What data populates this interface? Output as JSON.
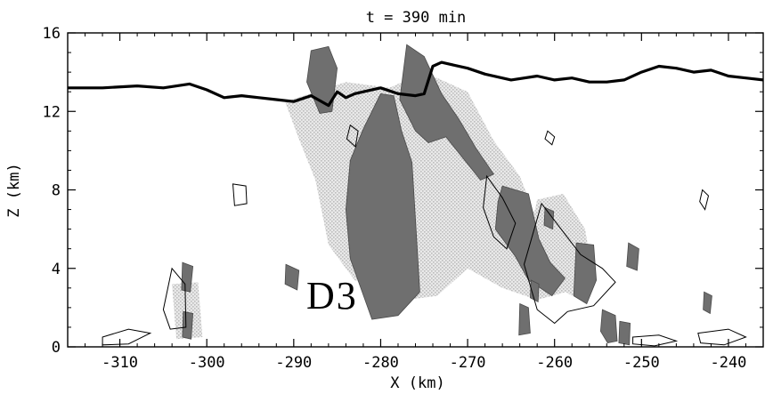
{
  "chart_data": {
    "type": "contour",
    "title": "t = 390 min",
    "xlabel": "X (km)",
    "ylabel": "Z (km)",
    "xlim": [
      -316,
      -236
    ],
    "ylim": [
      0,
      16
    ],
    "x_ticks": [
      -310,
      -300,
      -290,
      -280,
      -270,
      -260,
      -250,
      -240
    ],
    "y_ticks": [
      0,
      4,
      8,
      12,
      16
    ],
    "annotations": [
      {
        "text": "D3",
        "x": -281,
        "y": 2.5
      }
    ],
    "thick_contour": {
      "x": [
        -316,
        -312,
        -308,
        -305,
        -302,
        -300,
        -298,
        -296,
        -294,
        -292,
        -290,
        -288,
        -286,
        -285,
        -284,
        -283,
        -282,
        -280,
        -278,
        -276,
        -275,
        -274,
        -273,
        -272,
        -270,
        -268,
        -265,
        -262,
        -260,
        -258,
        -256,
        -254,
        -252,
        -250,
        -248,
        -246,
        -244,
        -242,
        -240,
        -238,
        -236
      ],
      "z": [
        13.2,
        13.2,
        13.3,
        13.2,
        13.4,
        13.1,
        12.7,
        12.8,
        12.7,
        12.6,
        12.5,
        12.8,
        12.3,
        13.0,
        12.7,
        12.9,
        13.0,
        13.2,
        12.9,
        12.8,
        12.9,
        14.3,
        14.5,
        14.4,
        14.2,
        13.9,
        13.6,
        13.8,
        13.6,
        13.7,
        13.5,
        13.5,
        13.6,
        14.0,
        14.3,
        14.2,
        14.0,
        14.1,
        13.8,
        13.7,
        13.6
      ]
    },
    "dark_shaded_regions": [
      {
        "points": [
          [
            -288,
            15.1
          ],
          [
            -286,
            15.3
          ],
          [
            -285,
            14.2
          ],
          [
            -285.6,
            12.0
          ],
          [
            -287,
            11.9
          ],
          [
            -288.5,
            13.5
          ]
        ]
      },
      {
        "points": [
          [
            -277,
            15.4
          ],
          [
            -275,
            14.8
          ],
          [
            -273,
            12.9
          ],
          [
            -271,
            11.6
          ],
          [
            -269,
            10.1
          ],
          [
            -267,
            8.8
          ],
          [
            -268.5,
            8.5
          ],
          [
            -270.5,
            9.6
          ],
          [
            -272.5,
            10.7
          ],
          [
            -274.5,
            10.4
          ],
          [
            -276,
            11.0
          ],
          [
            -277.8,
            12.6
          ]
        ]
      },
      {
        "points": [
          [
            -278.5,
            12.8
          ],
          [
            -280,
            12.9
          ],
          [
            -282,
            11.1
          ],
          [
            -283.5,
            9.5
          ],
          [
            -284,
            7.0
          ],
          [
            -283.5,
            4.5
          ],
          [
            -281,
            1.4
          ],
          [
            -278,
            1.6
          ],
          [
            -275.5,
            2.8
          ],
          [
            -275.8,
            5.0
          ],
          [
            -276,
            6.5
          ],
          [
            -276.4,
            9.4
          ],
          [
            -277.6,
            11.0
          ]
        ]
      },
      {
        "points": [
          [
            -266,
            8.2
          ],
          [
            -263,
            7.8
          ],
          [
            -261.8,
            5.5
          ],
          [
            -260.5,
            4.3
          ],
          [
            -258.8,
            3.5
          ],
          [
            -260.3,
            2.6
          ],
          [
            -263,
            3.4
          ],
          [
            -264.5,
            4.6
          ],
          [
            -266.8,
            6.0
          ],
          [
            -266.5,
            7.4
          ]
        ]
      },
      {
        "points": [
          [
            -257.5,
            5.3
          ],
          [
            -255.5,
            5.2
          ],
          [
            -255.2,
            3.4
          ],
          [
            -256.3,
            2.2
          ],
          [
            -257.8,
            2.6
          ]
        ]
      },
      {
        "points": [
          [
            -264,
            2.2
          ],
          [
            -263,
            2.0
          ],
          [
            -262.8,
            0.7
          ],
          [
            -264.1,
            0.6
          ]
        ]
      },
      {
        "points": [
          [
            -254.5,
            1.9
          ],
          [
            -253,
            1.6
          ],
          [
            -252.8,
            0.3
          ],
          [
            -253.9,
            0.2
          ],
          [
            -254.7,
            0.8
          ]
        ]
      },
      {
        "points": [
          [
            -252.5,
            1.3
          ],
          [
            -251.3,
            1.2
          ],
          [
            -251.4,
            0.1
          ],
          [
            -252.6,
            0.2
          ]
        ]
      },
      {
        "points": [
          [
            -251.5,
            5.3
          ],
          [
            -250.3,
            5.0
          ],
          [
            -250.5,
            3.9
          ],
          [
            -251.7,
            4.1
          ]
        ]
      },
      {
        "points": [
          [
            -302.8,
            4.3
          ],
          [
            -301.6,
            4.1
          ],
          [
            -301.9,
            2.8
          ],
          [
            -302.9,
            2.9
          ]
        ]
      },
      {
        "points": [
          [
            -302.7,
            1.8
          ],
          [
            -301.6,
            1.7
          ],
          [
            -301.8,
            0.4
          ],
          [
            -302.8,
            0.5
          ]
        ]
      },
      {
        "points": [
          [
            -290.9,
            4.2
          ],
          [
            -289.4,
            3.9
          ],
          [
            -289.6,
            2.9
          ],
          [
            -291.0,
            3.2
          ]
        ]
      },
      {
        "points": [
          [
            -242.8,
            2.8
          ],
          [
            -241.9,
            2.6
          ],
          [
            -242.1,
            1.7
          ],
          [
            -242.9,
            1.9
          ]
        ]
      },
      {
        "points": [
          [
            -261.1,
            7.1
          ],
          [
            -260.1,
            6.9
          ],
          [
            -260.2,
            6.0
          ],
          [
            -261.2,
            6.2
          ]
        ]
      },
      {
        "points": [
          [
            -262.7,
            3.4
          ],
          [
            -261.8,
            3.2
          ],
          [
            -261.9,
            2.3
          ],
          [
            -262.8,
            2.5
          ]
        ]
      }
    ],
    "light_shaded_regions": [
      {
        "points": [
          [
            -291,
            12.5
          ],
          [
            -284,
            13.5
          ],
          [
            -279,
            13.2
          ],
          [
            -275,
            14.0
          ],
          [
            -270,
            13.0
          ],
          [
            -267,
            10.5
          ],
          [
            -264,
            8.7
          ],
          [
            -262.5,
            7.0
          ],
          [
            -259,
            4.0
          ],
          [
            -257,
            3.0
          ],
          [
            -262,
            2.4
          ],
          [
            -266,
            3.0
          ],
          [
            -270,
            4.0
          ],
          [
            -273.5,
            2.6
          ],
          [
            -277,
            2.4
          ],
          [
            -283,
            3.4
          ],
          [
            -286,
            5.2
          ],
          [
            -287.5,
            8.5
          ],
          [
            -289.5,
            10.7
          ]
        ]
      },
      {
        "points": [
          [
            -262,
            7.5
          ],
          [
            -259,
            7.8
          ],
          [
            -256.5,
            6.0
          ],
          [
            -255.5,
            3.5
          ],
          [
            -258,
            2.6
          ],
          [
            -261.5,
            3.6
          ],
          [
            -263,
            5.5
          ]
        ]
      },
      {
        "points": [
          [
            -304,
            3.2
          ],
          [
            -301,
            3.3
          ],
          [
            -300.5,
            0.5
          ],
          [
            -303.5,
            0.4
          ]
        ]
      }
    ],
    "thin_contours": [
      {
        "points": [
          [
            -304,
            4.0
          ],
          [
            -302.5,
            3.2
          ],
          [
            -302.4,
            1.0
          ],
          [
            -304.2,
            0.9
          ],
          [
            -305.0,
            1.9
          ]
        ]
      },
      {
        "points": [
          [
            -261.5,
            7.3
          ],
          [
            -257,
            4.7
          ],
          [
            -254.5,
            4.0
          ],
          [
            -253,
            3.3
          ],
          [
            -255.5,
            2.1
          ],
          [
            -258.5,
            1.8
          ],
          [
            -260,
            1.2
          ],
          [
            -262,
            1.9
          ],
          [
            -263.5,
            4.2
          ]
        ]
      },
      {
        "points": [
          [
            -312,
            0.5
          ],
          [
            -309,
            0.9
          ],
          [
            -306.5,
            0.7
          ],
          [
            -309,
            0.15
          ],
          [
            -312,
            0.1
          ]
        ]
      },
      {
        "points": [
          [
            -267.8,
            8.7
          ],
          [
            -266,
            7.6
          ],
          [
            -264.5,
            6.3
          ],
          [
            -265.5,
            5.0
          ],
          [
            -267,
            5.6
          ],
          [
            -268.2,
            7.1
          ]
        ]
      },
      {
        "points": [
          [
            -297,
            8.3
          ],
          [
            -295.5,
            8.2
          ],
          [
            -295.4,
            7.3
          ],
          [
            -296.8,
            7.2
          ]
        ]
      },
      {
        "points": [
          [
            -243,
            8.0
          ],
          [
            -242.3,
            7.7
          ],
          [
            -242.7,
            7.0
          ],
          [
            -243.3,
            7.4
          ]
        ]
      },
      {
        "points": [
          [
            -283.5,
            11.3
          ],
          [
            -282.6,
            11.0
          ],
          [
            -282.9,
            10.2
          ],
          [
            -283.9,
            10.6
          ]
        ]
      },
      {
        "points": [
          [
            -260.8,
            11.0
          ],
          [
            -260,
            10.7
          ],
          [
            -260.3,
            10.3
          ],
          [
            -261.1,
            10.6
          ]
        ]
      },
      {
        "points": [
          [
            -243.5,
            0.7
          ],
          [
            -240,
            0.9
          ],
          [
            -238,
            0.5
          ],
          [
            -240.5,
            0.1
          ],
          [
            -243.2,
            0.2
          ]
        ]
      },
      {
        "points": [
          [
            -251,
            0.5
          ],
          [
            -248,
            0.6
          ],
          [
            -246,
            0.3
          ],
          [
            -248.5,
            0.05
          ],
          [
            -251,
            0.15
          ]
        ]
      }
    ]
  }
}
